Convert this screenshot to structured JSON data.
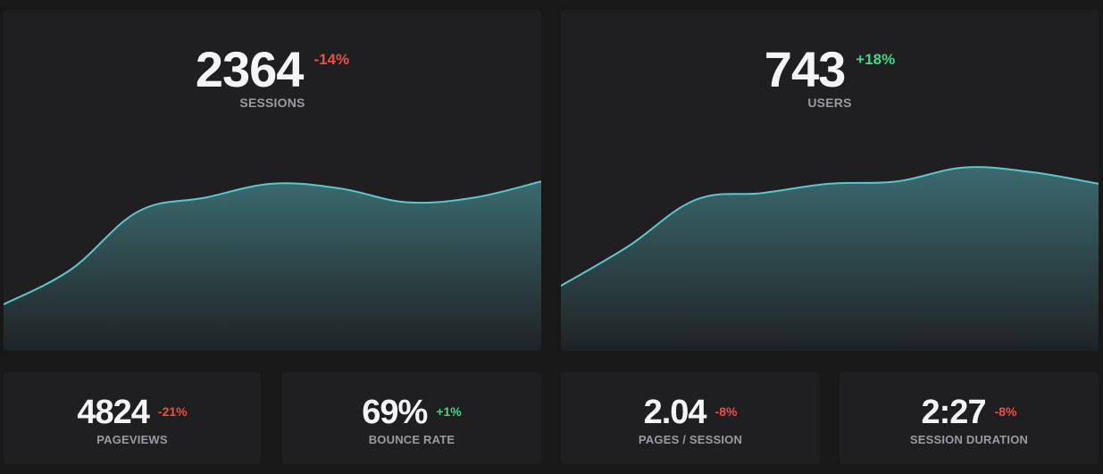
{
  "colors": {
    "background": "#181819",
    "card": "#1f1f21",
    "line": "#5cc6cf",
    "negative": "#ef4f42",
    "positive": "#3fd986"
  },
  "sessions": {
    "value": "2364",
    "change": "-14%",
    "label": "SESSIONS"
  },
  "users": {
    "value": "743",
    "change": "+18%",
    "label": "USERS"
  },
  "pageviews": {
    "value": "4824",
    "change": "-21%",
    "label": "PAGEVIEWS"
  },
  "bounce_rate": {
    "value": "69%",
    "change": "+1%",
    "label": "BOUNCE RATE"
  },
  "pages_per_session": {
    "value": "2.04",
    "change": "-8%",
    "label": "PAGES / SESSION"
  },
  "session_duration": {
    "value": "2:27",
    "change": "-8%",
    "label": "SESSION DURATION"
  },
  "chart_data": [
    {
      "type": "area",
      "title": "",
      "xlabel": "",
      "ylabel": "",
      "ylim": [
        0,
        100
      ],
      "x": [
        0,
        1,
        2,
        3,
        4,
        5,
        6,
        7,
        8
      ],
      "series": [
        {
          "values": [
            20,
            35,
            60,
            66,
            72,
            70,
            64,
            66,
            73
          ]
        }
      ]
    },
    {
      "type": "area",
      "title": "",
      "xlabel": "",
      "ylabel": "",
      "ylim": [
        0,
        100
      ],
      "x": [
        0,
        1,
        2,
        3,
        4,
        5,
        6,
        7,
        8
      ],
      "series": [
        {
          "values": [
            28,
            45,
            65,
            68,
            72,
            73,
            79,
            77,
            72
          ]
        }
      ]
    }
  ]
}
